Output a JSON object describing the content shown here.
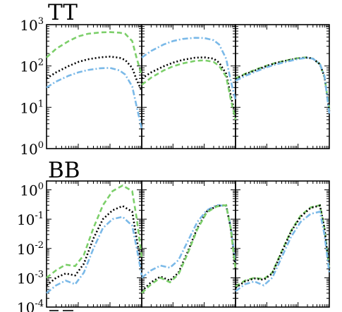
{
  "chart_data": [
    {
      "type": "line",
      "title": "TT",
      "yscale": "log",
      "ylim": [
        1,
        1000
      ],
      "yticklabels": [
        "10^0",
        "10^1",
        "10^2",
        "10^3"
      ],
      "xscale": "log",
      "xlim": [
        1,
        1000
      ],
      "panels": [
        {
          "x": [
            1,
            2,
            5,
            10,
            20,
            50,
            100,
            200,
            300,
            500,
            700,
            1000
          ],
          "series": [
            {
              "style": "dashed",
              "color": "#7ccf6a",
              "values": [
                160,
                260,
                400,
                520,
                600,
                650,
                660,
                640,
                600,
                400,
                150,
                60
              ]
            },
            {
              "style": "dotted",
              "color": "#000000",
              "values": [
                50,
                70,
                100,
                125,
                145,
                162,
                168,
                158,
                140,
                90,
                45,
                25
              ]
            },
            {
              "style": "dashdot",
              "color": "#7ab9e8",
              "values": [
                30,
                42,
                58,
                70,
                80,
                88,
                90,
                78,
                62,
                32,
                10,
                3
              ]
            }
          ]
        },
        {
          "x": [
            1,
            2,
            5,
            10,
            20,
            50,
            100,
            200,
            300,
            500,
            700,
            1000
          ],
          "series": [
            {
              "style": "dashdot",
              "color": "#7ab9e8",
              "values": [
                160,
                230,
                330,
                400,
                450,
                480,
                475,
                420,
                330,
                150,
                45,
                15
              ]
            },
            {
              "style": "dotted",
              "color": "#000000",
              "values": [
                50,
                70,
                98,
                120,
                140,
                158,
                162,
                150,
                120,
                65,
                20,
                6
              ]
            },
            {
              "style": "dashed",
              "color": "#7ccf6a",
              "values": [
                35,
                52,
                78,
                98,
                115,
                132,
                138,
                125,
                100,
                55,
                16,
                5
              ]
            }
          ]
        },
        {
          "x": [
            1,
            2,
            5,
            10,
            20,
            50,
            100,
            200,
            300,
            500,
            700,
            1000
          ],
          "series": [
            {
              "style": "dashed",
              "color": "#7ccf6a",
              "values": [
                50,
                64,
                85,
                102,
                120,
                140,
                155,
                162,
                150,
                110,
                55,
                9
              ]
            },
            {
              "style": "dotted",
              "color": "#000000",
              "values": [
                48,
                62,
                82,
                100,
                118,
                138,
                152,
                160,
                150,
                110,
                55,
                8
              ]
            },
            {
              "style": "dashdot",
              "color": "#7ab9e8",
              "values": [
                44,
                57,
                76,
                93,
                110,
                130,
                148,
                158,
                150,
                112,
                58,
                7
              ]
            }
          ]
        }
      ]
    },
    {
      "type": "line",
      "title": "BB",
      "yscale": "log",
      "ylim": [
        0.0001,
        2
      ],
      "yticklabels": [
        "10^0",
        "10^-1",
        "10^-2",
        "10^-3",
        "10^-4"
      ],
      "xscale": "log",
      "xlim": [
        1,
        1000
      ],
      "panels": [
        {
          "x": [
            1,
            2,
            4,
            8,
            15,
            30,
            60,
            120,
            250,
            500,
            700,
            1000
          ],
          "series": [
            {
              "style": "dashed",
              "color": "#7ccf6a",
              "values": [
                0.001,
                0.0018,
                0.0028,
                0.0025,
                0.006,
                0.05,
                0.3,
                0.9,
                1.4,
                0.9,
                0.1,
                0.005
              ]
            },
            {
              "style": "dotted",
              "color": "#000000",
              "values": [
                0.00055,
                0.001,
                0.0014,
                0.0012,
                0.003,
                0.022,
                0.1,
                0.2,
                0.28,
                0.18,
                0.02,
                0.002
              ]
            },
            {
              "style": "dashdot",
              "color": "#7ab9e8",
              "values": [
                0.0003,
                0.00055,
                0.0008,
                0.0006,
                0.0015,
                0.01,
                0.05,
                0.1,
                0.12,
                0.06,
                0.01,
                0.0012
              ]
            }
          ]
        },
        {
          "x": [
            1,
            2,
            4,
            8,
            15,
            30,
            60,
            120,
            250,
            500,
            700,
            1000
          ],
          "series": [
            {
              "style": "dashdot",
              "color": "#7ab9e8",
              "values": [
                0.001,
                0.0018,
                0.0026,
                0.0022,
                0.004,
                0.018,
                0.08,
                0.2,
                0.3,
                0.28,
                0.06,
                0.003
              ]
            },
            {
              "style": "dotted",
              "color": "#000000",
              "values": [
                0.00035,
                0.0007,
                0.0011,
                0.0008,
                0.0015,
                0.008,
                0.05,
                0.18,
                0.28,
                0.3,
                0.05,
                0.002
              ]
            },
            {
              "style": "dashed",
              "color": "#7ccf6a",
              "values": [
                0.0003,
                0.0006,
                0.001,
                0.0007,
                0.0013,
                0.007,
                0.045,
                0.17,
                0.27,
                0.3,
                0.05,
                0.002
              ]
            }
          ]
        },
        {
          "x": [
            1,
            2,
            4,
            8,
            15,
            30,
            60,
            120,
            250,
            500,
            700,
            1000
          ],
          "series": [
            {
              "style": "dashed",
              "color": "#7ccf6a",
              "values": [
                0.0005,
                0.0008,
                0.001,
                0.0009,
                0.0015,
                0.008,
                0.04,
                0.13,
                0.25,
                0.3,
                0.05,
                0.002
              ]
            },
            {
              "style": "dotted",
              "color": "#000000",
              "values": [
                0.00045,
                0.00075,
                0.00095,
                0.00085,
                0.0014,
                0.0075,
                0.038,
                0.12,
                0.24,
                0.29,
                0.05,
                0.002
              ]
            },
            {
              "style": "dashdot",
              "color": "#7ab9e8",
              "values": [
                0.00035,
                0.0006,
                0.00075,
                0.00055,
                0.001,
                0.005,
                0.025,
                0.08,
                0.15,
                0.18,
                0.03,
                0.0015
              ]
            }
          ]
        }
      ]
    }
  ]
}
